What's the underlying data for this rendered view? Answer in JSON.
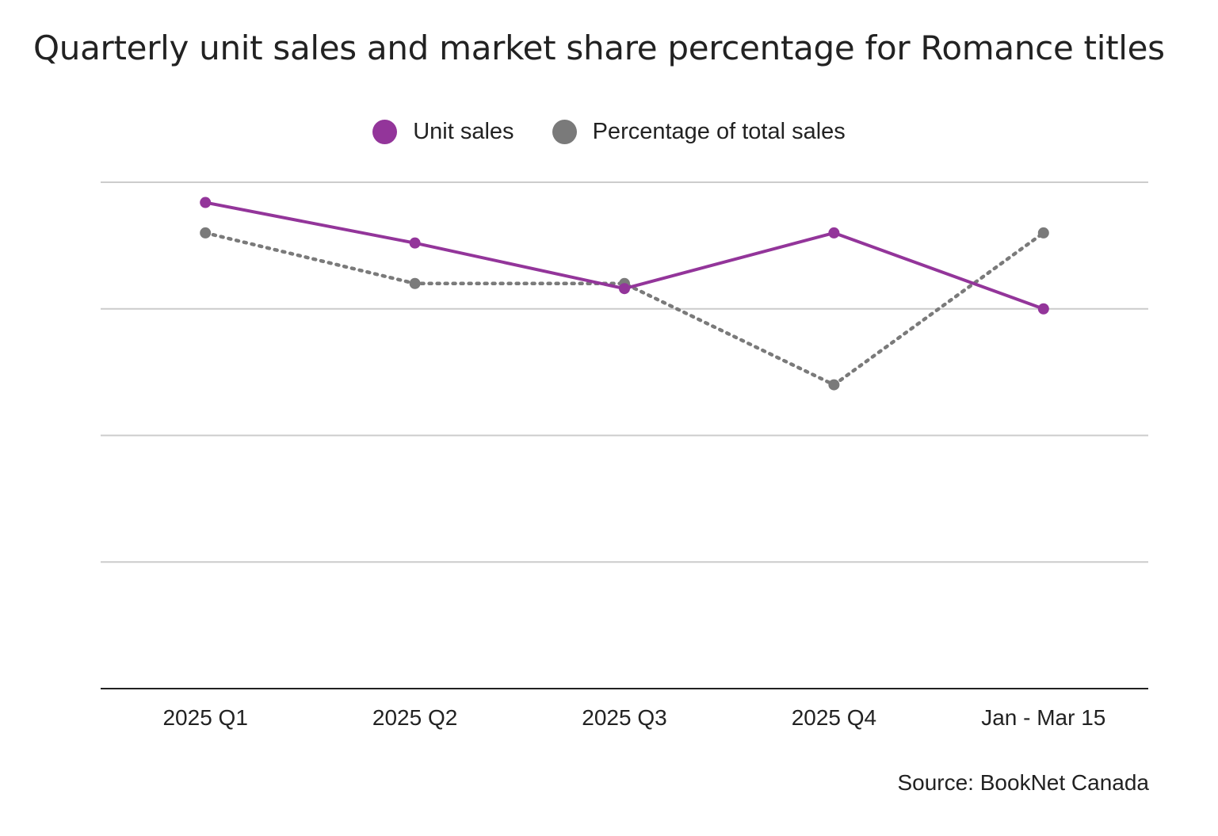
{
  "title": "Quarterly unit sales and market share percentage for Romance titles",
  "source": "Source: BookNet Canada",
  "colors": {
    "unit_sales": "#93359a",
    "percentage": "#7a7a7a",
    "grid": "#cccccc",
    "axis": "#222222"
  },
  "chart_data": {
    "type": "line",
    "title": "Quarterly unit sales and market share percentage for Romance titles",
    "categories": [
      "2025 Q1",
      "2025 Q2",
      "2025 Q3",
      "2025 Q4",
      "Jan - Mar 15"
    ],
    "ylim": [
      0,
      100
    ],
    "grid": true,
    "legend": "top-center",
    "series": [
      {
        "name": "Unit sales",
        "style": "solid",
        "marker": "circle",
        "values": [
          96,
          88,
          79,
          90,
          75
        ]
      },
      {
        "name": "Percentage of total sales",
        "style": "dotted",
        "marker": "circle",
        "values": [
          90,
          80,
          80,
          60,
          90
        ]
      }
    ]
  }
}
